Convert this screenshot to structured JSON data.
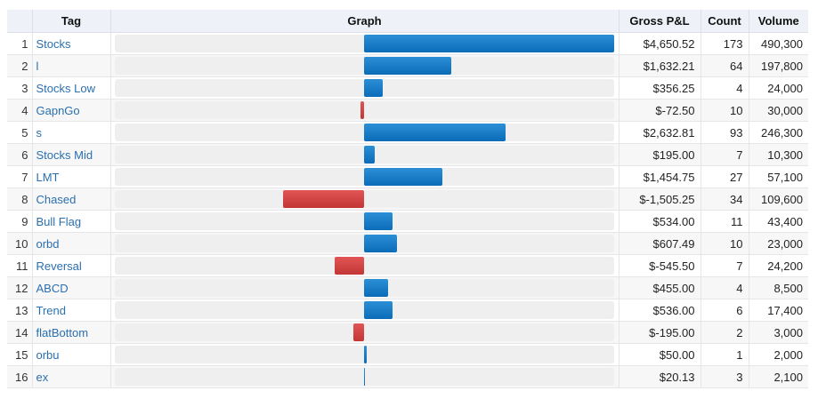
{
  "headers": {
    "tag": "Tag",
    "graph": "Graph",
    "gross": "Gross P&L",
    "count": "Count",
    "volume": "Volume"
  },
  "graph_scale": {
    "max_abs_pnl": 4650.52
  },
  "colors": {
    "positive": "#1a7dc9",
    "negative": "#d64545"
  },
  "rows": [
    {
      "index": "1",
      "tag": "Stocks",
      "pnl": 4650.52,
      "gross": "$4,650.52",
      "count": "173",
      "volume": "490,300"
    },
    {
      "index": "2",
      "tag": "l",
      "pnl": 1632.21,
      "gross": "$1,632.21",
      "count": "64",
      "volume": "197,800"
    },
    {
      "index": "3",
      "tag": "Stocks Low",
      "pnl": 356.25,
      "gross": "$356.25",
      "count": "4",
      "volume": "24,000"
    },
    {
      "index": "4",
      "tag": "GapnGo",
      "pnl": -72.5,
      "gross": "$-72.50",
      "count": "10",
      "volume": "30,000"
    },
    {
      "index": "5",
      "tag": "s",
      "pnl": 2632.81,
      "gross": "$2,632.81",
      "count": "93",
      "volume": "246,300"
    },
    {
      "index": "6",
      "tag": "Stocks Mid",
      "pnl": 195.0,
      "gross": "$195.00",
      "count": "7",
      "volume": "10,300"
    },
    {
      "index": "7",
      "tag": "LMT",
      "pnl": 1454.75,
      "gross": "$1,454.75",
      "count": "27",
      "volume": "57,100"
    },
    {
      "index": "8",
      "tag": "Chased",
      "pnl": -1505.25,
      "gross": "$-1,505.25",
      "count": "34",
      "volume": "109,600"
    },
    {
      "index": "9",
      "tag": "Bull Flag",
      "pnl": 534.0,
      "gross": "$534.00",
      "count": "11",
      "volume": "43,400"
    },
    {
      "index": "10",
      "tag": "orbd",
      "pnl": 607.49,
      "gross": "$607.49",
      "count": "10",
      "volume": "23,000"
    },
    {
      "index": "11",
      "tag": "Reversal",
      "pnl": -545.5,
      "gross": "$-545.50",
      "count": "7",
      "volume": "24,200"
    },
    {
      "index": "12",
      "tag": "ABCD",
      "pnl": 455.0,
      "gross": "$455.00",
      "count": "4",
      "volume": "8,500"
    },
    {
      "index": "13",
      "tag": "Trend",
      "pnl": 536.0,
      "gross": "$536.00",
      "count": "6",
      "volume": "17,400"
    },
    {
      "index": "14",
      "tag": "flatBottom",
      "pnl": -195.0,
      "gross": "$-195.00",
      "count": "2",
      "volume": "3,000"
    },
    {
      "index": "15",
      "tag": "orbu",
      "pnl": 50.0,
      "gross": "$50.00",
      "count": "1",
      "volume": "2,000"
    },
    {
      "index": "16",
      "tag": "ex",
      "pnl": 20.13,
      "gross": "$20.13",
      "count": "3",
      "volume": "2,100"
    }
  ]
}
